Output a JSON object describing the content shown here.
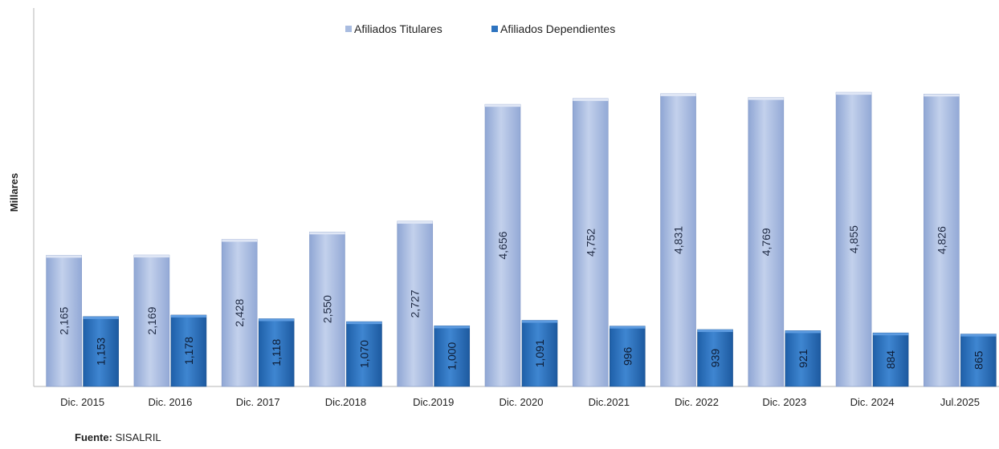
{
  "chart_data": {
    "type": "bar",
    "title": "",
    "ylabel": "Millares",
    "xlabel": "",
    "ylim": [
      0,
      5000
    ],
    "grid": false,
    "legend_position": "top",
    "categories": [
      "Dic. 2015",
      "Dic. 2016",
      "Dic. 2017",
      "Dic.2018",
      "Dic.2019",
      "Dic. 2020",
      "Dic.2021",
      "Dic. 2022",
      "Dic. 2023",
      "Dic. 2024",
      "Jul.2025"
    ],
    "series": [
      {
        "name": "Afiliados Titulares",
        "color": "#a9bce0",
        "values": [
          2165,
          2169,
          2428,
          2550,
          2727,
          4656,
          4752,
          4831,
          4769,
          4855,
          4826
        ],
        "labels": [
          "2,165",
          "2,169",
          "2,428",
          "2,550",
          "2,727",
          "4,656",
          "4,752",
          "4,831",
          "4,769",
          "4,855",
          "4,826"
        ]
      },
      {
        "name": "Afiliados Dependientes",
        "color": "#2e74c0",
        "values": [
          1153,
          1178,
          1118,
          1070,
          1000,
          1091,
          996,
          939,
          921,
          884,
          865
        ],
        "labels": [
          "1,153",
          "1,178",
          "1,118",
          "1,070",
          "1,000",
          "1,091",
          "996",
          "939",
          "921",
          "884",
          "865"
        ]
      }
    ]
  },
  "footnote": {
    "label": "Fuente:",
    "value": "SISALRIL"
  }
}
